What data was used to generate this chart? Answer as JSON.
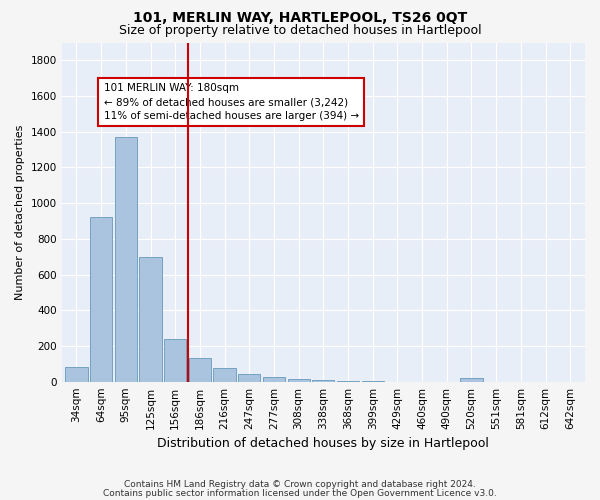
{
  "title": "101, MERLIN WAY, HARTLEPOOL, TS26 0QT",
  "subtitle": "Size of property relative to detached houses in Hartlepool",
  "xlabel": "Distribution of detached houses by size in Hartlepool",
  "ylabel": "Number of detached properties",
  "categories": [
    "34sqm",
    "64sqm",
    "95sqm",
    "125sqm",
    "156sqm",
    "186sqm",
    "216sqm",
    "247sqm",
    "277sqm",
    "308sqm",
    "338sqm",
    "368sqm",
    "399sqm",
    "429sqm",
    "460sqm",
    "490sqm",
    "520sqm",
    "551sqm",
    "581sqm",
    "612sqm",
    "642sqm"
  ],
  "values": [
    80,
    920,
    1370,
    700,
    240,
    130,
    75,
    45,
    25,
    15,
    10,
    5,
    2,
    0,
    0,
    0,
    20,
    0,
    0,
    0,
    0
  ],
  "bar_color": "#aac4df",
  "bar_edge_color": "#6699bb",
  "vline_color": "#cc0000",
  "vline_x": 4.5,
  "annotation_text": "101 MERLIN WAY: 180sqm\n← 89% of detached houses are smaller (3,242)\n11% of semi-detached houses are larger (394) →",
  "annotation_box_color": "#ffffff",
  "annotation_box_edge": "#cc0000",
  "ylim": [
    0,
    1900
  ],
  "yticks": [
    0,
    200,
    400,
    600,
    800,
    1000,
    1200,
    1400,
    1600,
    1800
  ],
  "background_color": "#e8eef8",
  "plot_bg_color": "#dde6f0",
  "grid_color": "#ffffff",
  "footer_line1": "Contains HM Land Registry data © Crown copyright and database right 2024.",
  "footer_line2": "Contains public sector information licensed under the Open Government Licence v3.0.",
  "title_fontsize": 10,
  "subtitle_fontsize": 9,
  "xlabel_fontsize": 9,
  "ylabel_fontsize": 8,
  "tick_fontsize": 7.5,
  "annotation_fontsize": 7.5,
  "footer_fontsize": 6.5
}
